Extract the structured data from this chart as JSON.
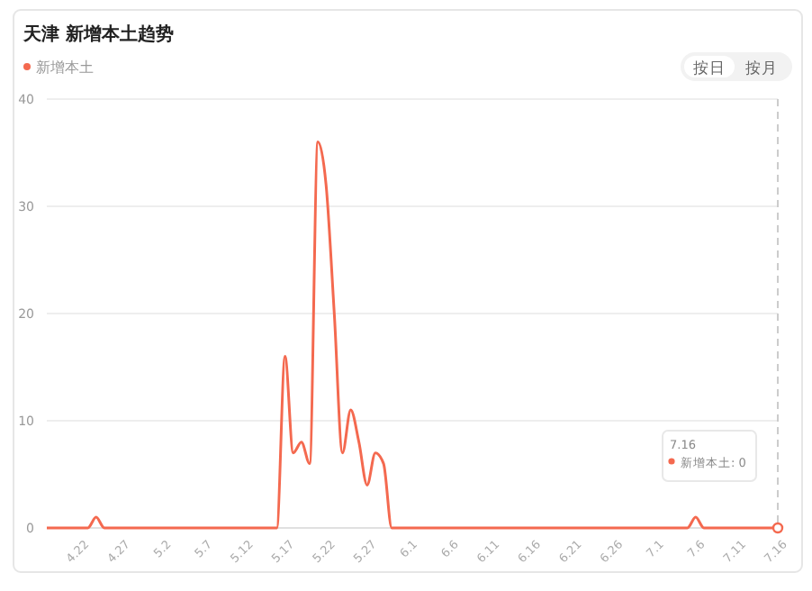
{
  "chart_data": {
    "type": "line",
    "title": "天津 新增本土趋势",
    "categories": [
      null,
      null,
      null,
      null,
      "4.22",
      null,
      null,
      null,
      null,
      "4.27",
      null,
      null,
      null,
      null,
      "5.2",
      null,
      null,
      null,
      null,
      "5.7",
      null,
      null,
      null,
      null,
      "5.12",
      null,
      null,
      null,
      null,
      "5.17",
      null,
      null,
      null,
      null,
      "5.22",
      null,
      null,
      null,
      null,
      "5.27",
      null,
      null,
      null,
      null,
      "6.1",
      null,
      null,
      null,
      null,
      "6.6",
      null,
      null,
      null,
      null,
      "6.11",
      null,
      null,
      null,
      null,
      "6.16",
      null,
      null,
      null,
      null,
      "6.21",
      null,
      null,
      null,
      null,
      "6.26",
      null,
      null,
      null,
      null,
      "7.1",
      null,
      null,
      null,
      null,
      "7.6",
      null,
      null,
      null,
      null,
      "7.11",
      null,
      null,
      null,
      null,
      "7.16"
    ],
    "series": [
      {
        "name": "新增本土",
        "color": "#f4694f",
        "values": [
          0,
          0,
          0,
          0,
          0,
          0,
          1,
          0,
          0,
          0,
          0,
          0,
          0,
          0,
          0,
          0,
          0,
          0,
          0,
          0,
          0,
          0,
          0,
          0,
          0,
          0,
          0,
          0,
          0,
          16,
          7,
          8,
          6,
          36,
          32,
          20,
          7,
          11,
          8,
          4,
          7,
          6,
          0,
          0,
          0,
          0,
          0,
          0,
          0,
          0,
          0,
          0,
          0,
          0,
          0,
          0,
          0,
          0,
          0,
          0,
          0,
          0,
          0,
          0,
          0,
          0,
          0,
          0,
          0,
          0,
          0,
          0,
          0,
          0,
          0,
          0,
          0,
          0,
          0,
          1,
          0,
          0,
          0,
          0,
          0,
          0,
          0,
          0,
          0,
          0
        ]
      }
    ],
    "ylim": [
      0,
      40
    ],
    "yticks": [
      0,
      10,
      20,
      30,
      40
    ],
    "grid": "y",
    "legend": "top left",
    "marker": "none",
    "line_style": "solid",
    "ref_lines": [
      {
        "axis": "x",
        "value": "7.16",
        "color": "#cccccc",
        "line_style": "dashed"
      }
    ],
    "annotations": [
      "按日",
      "按月",
      "7.16\n新增本土: 0"
    ]
  }
}
